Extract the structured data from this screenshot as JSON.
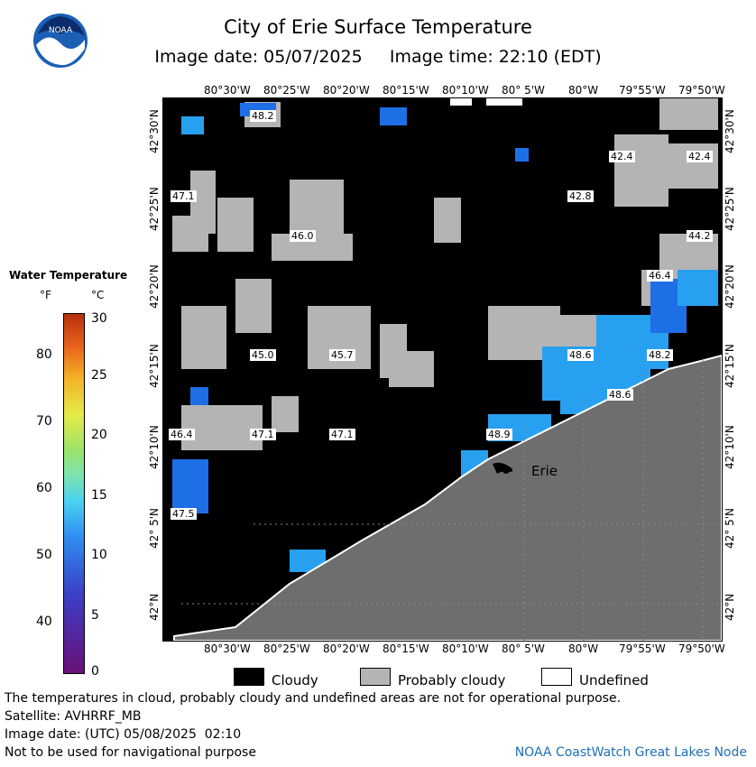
{
  "title": "City of Erie Surface Temperature",
  "subtitle": "Image date: 05/07/2025     Image time: 22:10 (EDT)",
  "logo_text": "NOAA",
  "lon_ticks": [
    "80°30'W",
    "80°25'W",
    "80°20'W",
    "80°15'W",
    "80°10'W",
    "80° 5'W",
    "80°W",
    "79°55'W",
    "79°50'W"
  ],
  "lat_ticks": [
    "42°30'N",
    "42°25'N",
    "42°20'N",
    "42°15'N",
    "42°10'N",
    "42° 5'N",
    "42°N"
  ],
  "temperature_labels": [
    "48.2",
    "42.4",
    "42.4",
    "47.1",
    "42.8",
    "46.0",
    "44.2",
    "46.4",
    "45.0",
    "45.7",
    "48.6",
    "48.2",
    "48.6",
    "46.4",
    "47.1",
    "47.1",
    "48.9",
    "47.5"
  ],
  "city_label": "Erie",
  "legend": {
    "title": "Water Temperature",
    "f_header": "°F",
    "c_header": "°C",
    "f_ticks": [
      "80",
      "70",
      "60",
      "50",
      "40"
    ],
    "c_ticks": [
      "30",
      "25",
      "20",
      "15",
      "10",
      "5",
      "0"
    ]
  },
  "key": {
    "cloudy": "Cloudy",
    "probably_cloudy": "Probably cloudy",
    "undefined": "Undefined",
    "colors": {
      "cloudy": "#000000",
      "probably_cloudy": "#b4b4b4",
      "undefined": "#ffffff",
      "land": "#6e6e6e",
      "water_warm": "#28a0f0",
      "water_cool": "#1e6fe6"
    }
  },
  "footer": {
    "disclaimer": "The temperatures in cloud, probably cloudy and undefined areas are not for operational purpose.",
    "satellite": "Satellite: AVHRRF_MB",
    "utc_date": "Image date: (UTC) 05/08/2025  02:10",
    "navigation": "Not to be used for navigational purpose",
    "credit": "NOAA CoastWatch Great Lakes Node"
  }
}
